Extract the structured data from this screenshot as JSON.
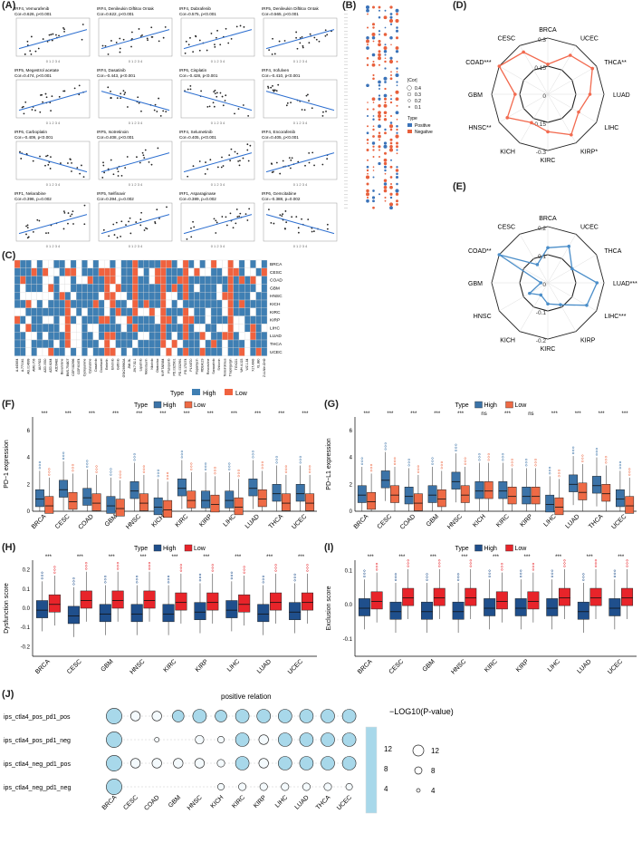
{
  "panel_labels": [
    "(A)",
    "(B)",
    "(C)",
    "(D)",
    "(E)",
    "(F)",
    "(G)",
    "(H)",
    "(I)",
    "(J)"
  ],
  "panel_a": {
    "cells": [
      {
        "drug": "IRF4, Vemurafenib",
        "stat": "Cor=0.626, p<0.001",
        "slope": 1
      },
      {
        "drug": "IRF4, Denileukin Diftitox Ontak",
        "stat": "Cor=0.622, p<0.001",
        "slope": 1
      },
      {
        "drug": "IRF4, Dabrafenib",
        "stat": "Cor=0.575, p<0.001",
        "slope": 1
      },
      {
        "drug": "IRF5, Denileukin Diftitox Ontak",
        "stat": "Cor=0.565, p<0.001",
        "slope": 1
      },
      {
        "drug": "IRF5, Megestrol acetate",
        "stat": "Cor=0.474, p<0.001",
        "slope": 1
      },
      {
        "drug": "IRF4, Dasatinib",
        "stat": "Cor=-0.443, p<0.001",
        "slope": -1
      },
      {
        "drug": "IRF6, Cisplatin",
        "stat": "Cor=-0.428, p<0.001",
        "slope": -1
      },
      {
        "drug": "IRF4, Irofulven",
        "stat": "Cor=-0.410, p<0.001",
        "slope": -1
      },
      {
        "drug": "IRF6, Carboplatin",
        "stat": "Cor=-0.409, p<0.001",
        "slope": -1
      },
      {
        "drug": "IRF5, Isotretinoin",
        "stat": "Cor=0.408, p<0.001",
        "slope": 1
      },
      {
        "drug": "IRF4, Selumetinib",
        "stat": "Cor=0.405, p<0.001",
        "slope": 1
      },
      {
        "drug": "IRF4, Encorafenib",
        "stat": "Cor=0.405, p<0.001",
        "slope": 1
      },
      {
        "drug": "IRF1, Nelarabine",
        "stat": "Cor=0.396, p=0.002",
        "slope": 1
      },
      {
        "drug": "IRF5, Nelfinavir",
        "stat": "Cor=0.394, p=0.002",
        "slope": 1
      },
      {
        "drug": "IRF1, Asparaginase",
        "stat": "Cor=0.389, p=0.002",
        "slope": 1
      },
      {
        "drug": "IRF6, Gemcitabine",
        "stat": "Cor=-0.388, p=0.002",
        "slope": -1
      }
    ]
  },
  "panel_b": {
    "legend_title_size": "|Cor|",
    "size_levels": [
      "0.4",
      "0.3",
      "0.2",
      "0.1"
    ],
    "legend_title_type": "Type",
    "types": [
      "Positive",
      "Negative"
    ],
    "colors": {
      "Positive": "#3b73b9",
      "Negative": "#e8603c"
    }
  },
  "panel_c": {
    "cancers": [
      "BRCA",
      "CESC",
      "COAD",
      "GBM",
      "HNSC",
      "KICH",
      "KIRC",
      "KIRP",
      "LIHC",
      "LUAD",
      "THCA",
      "UCEC"
    ],
    "drugs": [
      "A.443654",
      "A.770041",
      "AG.014699",
      "AMG.706",
      "AUY922",
      "AZD.0530",
      "AZD.6244",
      "AZD6482",
      "Bexarotene",
      "BMS.754807",
      "CGP.082996",
      "CGP.60474",
      "Cyclopamine",
      "Cytarabine",
      "Dasatinib",
      "Docetaxel",
      "Embelin",
      "Erlotinib",
      "Gefitinib",
      "GSK269962A",
      "JNK.9L",
      "JW.7.52.1",
      "Lapatinib",
      "Midostaurin",
      "Nilotinib",
      "Obatoclax",
      "NVP.TAE684",
      "Pazopanib",
      "PD.0325901",
      "PD.0332991",
      "PD.173074",
      "PLX4720",
      "Rapamycin",
      "RDEA119",
      "Roscovitine",
      "Saracatinib",
      "Shikonin",
      "Temsirolimus",
      "Thapsigargin",
      "TGX221",
      "WH.4.023",
      "WZ.1.84",
      "X17.AAG",
      "XL.880",
      "Z.LLNle.CHO"
    ],
    "legend_title": "Type",
    "types": [
      "High",
      "Low"
    ],
    "colors": {
      "High": "#3f7fb3",
      "Low": "#f0623f"
    }
  },
  "panel_d": {
    "cancers": [
      "BRCA",
      "UCEC",
      "THCA**",
      "LUAD",
      "LIHC",
      "KIRP*",
      "KIRC",
      "KICH",
      "HNSC**",
      "GBM",
      "COAD***",
      "CESC"
    ],
    "ticks": [
      "0.3",
      "0.15",
      "0",
      "-0.15",
      "-0.3"
    ],
    "values": [
      0.02,
      0.18,
      0.25,
      0.15,
      0.08,
      0.2,
      0.1,
      0.05,
      0.2,
      0.05,
      0.3,
      0.22
    ],
    "range": [
      -0.3,
      0.3
    ],
    "color": "#f26a4f"
  },
  "panel_e": {
    "cancers": [
      "BRCA",
      "UCEC",
      "THCA",
      "LUAD***",
      "LIHC***",
      "KIRP",
      "KIRC",
      "KICH",
      "HNSC",
      "GBM",
      "COAD**",
      "CESC"
    ],
    "ticks": [
      "0.2",
      "0.1",
      "0",
      "-0.1",
      "-0.2"
    ],
    "values": [
      0.05,
      0.1,
      0.0,
      0.15,
      0.12,
      -0.02,
      -0.05,
      -0.1,
      -0.05,
      -0.15,
      0.2,
      -0.05
    ],
    "range": [
      -0.2,
      0.2
    ],
    "color": "#4b8ec9"
  },
  "panel_f": {
    "ylabel": "PD−1 expression",
    "legend_title": "Type",
    "types": [
      "High",
      "Low"
    ],
    "colors": {
      "High": "#3b73a8",
      "Low": "#ee6a45"
    },
    "categories": [
      "BRCA",
      "CESC",
      "COAD",
      "GBM",
      "HNSC",
      "KICH",
      "KIRC",
      "KIRP",
      "LIHC",
      "LUAD",
      "THCA",
      "UCEC"
    ],
    "sig": [
      "***",
      "***",
      "***",
      "***",
      "***",
      "***",
      "***",
      "***",
      "***",
      "***",
      "***",
      "***"
    ],
    "yticks": [
      "0",
      "2",
      "4",
      "6"
    ],
    "ylim": [
      0,
      7
    ],
    "high_median": [
      0.9,
      1.6,
      1.0,
      0.4,
      1.5,
      0.3,
      1.7,
      0.8,
      0.8,
      1.7,
      1.3,
      1.3
    ],
    "low_median": [
      0.4,
      0.7,
      0.6,
      0.2,
      0.6,
      0.1,
      0.8,
      0.5,
      0.3,
      0.9,
      0.6,
      0.6
    ]
  },
  "panel_g": {
    "ylabel": "PD−L1 expression",
    "legend_title": "Type",
    "types": [
      "High",
      "Low"
    ],
    "colors": {
      "High": "#3b73a8",
      "Low": "#ee6a45"
    },
    "categories": [
      "BRCA",
      "CESC",
      "COAD",
      "GBM",
      "HNSC",
      "KICH",
      "KIRC",
      "KIRP",
      "LIHC",
      "LUAD",
      "THCA",
      "UCEC"
    ],
    "sig": [
      "***",
      "***",
      "***",
      "***",
      "***",
      "ns",
      "***",
      "ns",
      "***",
      "***",
      "***",
      "***"
    ],
    "yticks": [
      "0",
      "2",
      "4",
      "6"
    ],
    "ylim": [
      0,
      7
    ],
    "high_median": [
      1.2,
      2.3,
      1.1,
      1.2,
      2.2,
      1.5,
      1.5,
      1.1,
      0.5,
      2.0,
      1.9,
      0.9
    ],
    "low_median": [
      0.7,
      1.2,
      0.6,
      0.9,
      1.2,
      1.5,
      1.1,
      1.1,
      0.3,
      1.4,
      1.3,
      0.4
    ]
  },
  "panel_h": {
    "ylabel": "Dysfunction score",
    "legend_title": "Type",
    "types": [
      "High",
      "Low"
    ],
    "colors": {
      "High": "#1f4f8c",
      "Low": "#e8242a"
    },
    "categories": [
      "BRCA",
      "CESC",
      "GBM",
      "HNSC",
      "KIRC",
      "KIRP",
      "LIHC",
      "LUAD",
      "UCEC"
    ],
    "sig": [
      "***",
      "***",
      "***",
      "***",
      "***",
      "***",
      "***",
      "***",
      "***"
    ],
    "yticks": [
      "-0.2",
      "-0.1",
      "0.0",
      "0.1",
      "0.2"
    ],
    "ylim": [
      -0.25,
      0.25
    ],
    "high_median": [
      -0.01,
      -0.04,
      -0.03,
      -0.03,
      -0.03,
      -0.02,
      -0.01,
      -0.03,
      -0.02
    ],
    "low_median": [
      0.02,
      0.04,
      0.04,
      0.04,
      0.03,
      0.03,
      0.02,
      0.03,
      0.03
    ]
  },
  "panel_i": {
    "ylabel": "Exclusion score",
    "legend_title": "Type",
    "types": [
      "High",
      "Low"
    ],
    "colors": {
      "High": "#1f4f8c",
      "Low": "#e8242a"
    },
    "categories": [
      "BRCA",
      "CESC",
      "GBM",
      "HNSC",
      "KIRC",
      "KIRP",
      "LIHC",
      "LUAD",
      "UCEC"
    ],
    "sig": [
      "***",
      "***",
      "***",
      "***",
      "***",
      "***",
      "***",
      "***",
      "***"
    ],
    "yticks": [
      "-0.1",
      "0.0",
      "0.1"
    ],
    "ylim": [
      -0.15,
      0.13
    ],
    "high_median": [
      -0.01,
      -0.02,
      -0.02,
      -0.02,
      -0.01,
      -0.01,
      -0.01,
      -0.02,
      -0.01
    ],
    "low_median": [
      0.01,
      0.02,
      0.02,
      0.02,
      0.01,
      0.01,
      0.02,
      0.02,
      0.02
    ]
  },
  "panel_j": {
    "title": "positive relation",
    "rows": [
      "ips_ctla4_pos_pd1_pos",
      "ips_ctla4_pos_pd1_neg",
      "ips_ctla4_neg_pd1_pos",
      "ips_ctla4_neg_pd1_neg"
    ],
    "cols": [
      "BRCA",
      "CESC",
      "COAD",
      "GBM",
      "HNSC",
      "KICH",
      "KIRC",
      "KIRP",
      "LIHC",
      "LUAD",
      "THCA",
      "UCEC"
    ],
    "sizes": [
      [
        12,
        6,
        6,
        8,
        10,
        8,
        10,
        10,
        10,
        10,
        10,
        10
      ],
      [
        12,
        0,
        1,
        0,
        5,
        3,
        10,
        6,
        10,
        10,
        10,
        10
      ],
      [
        12,
        6,
        6,
        6,
        6,
        4,
        10,
        6,
        10,
        10,
        10,
        10
      ],
      [
        12,
        0,
        0,
        0,
        0,
        3,
        4,
        4,
        4,
        4,
        4,
        3
      ]
    ],
    "legend_title": "−LOG10(P-value)",
    "color_ticks": [
      "12",
      "8",
      "4"
    ],
    "size_ticks": [
      "12",
      "8",
      "4"
    ],
    "color": "#a8d8ea"
  }
}
